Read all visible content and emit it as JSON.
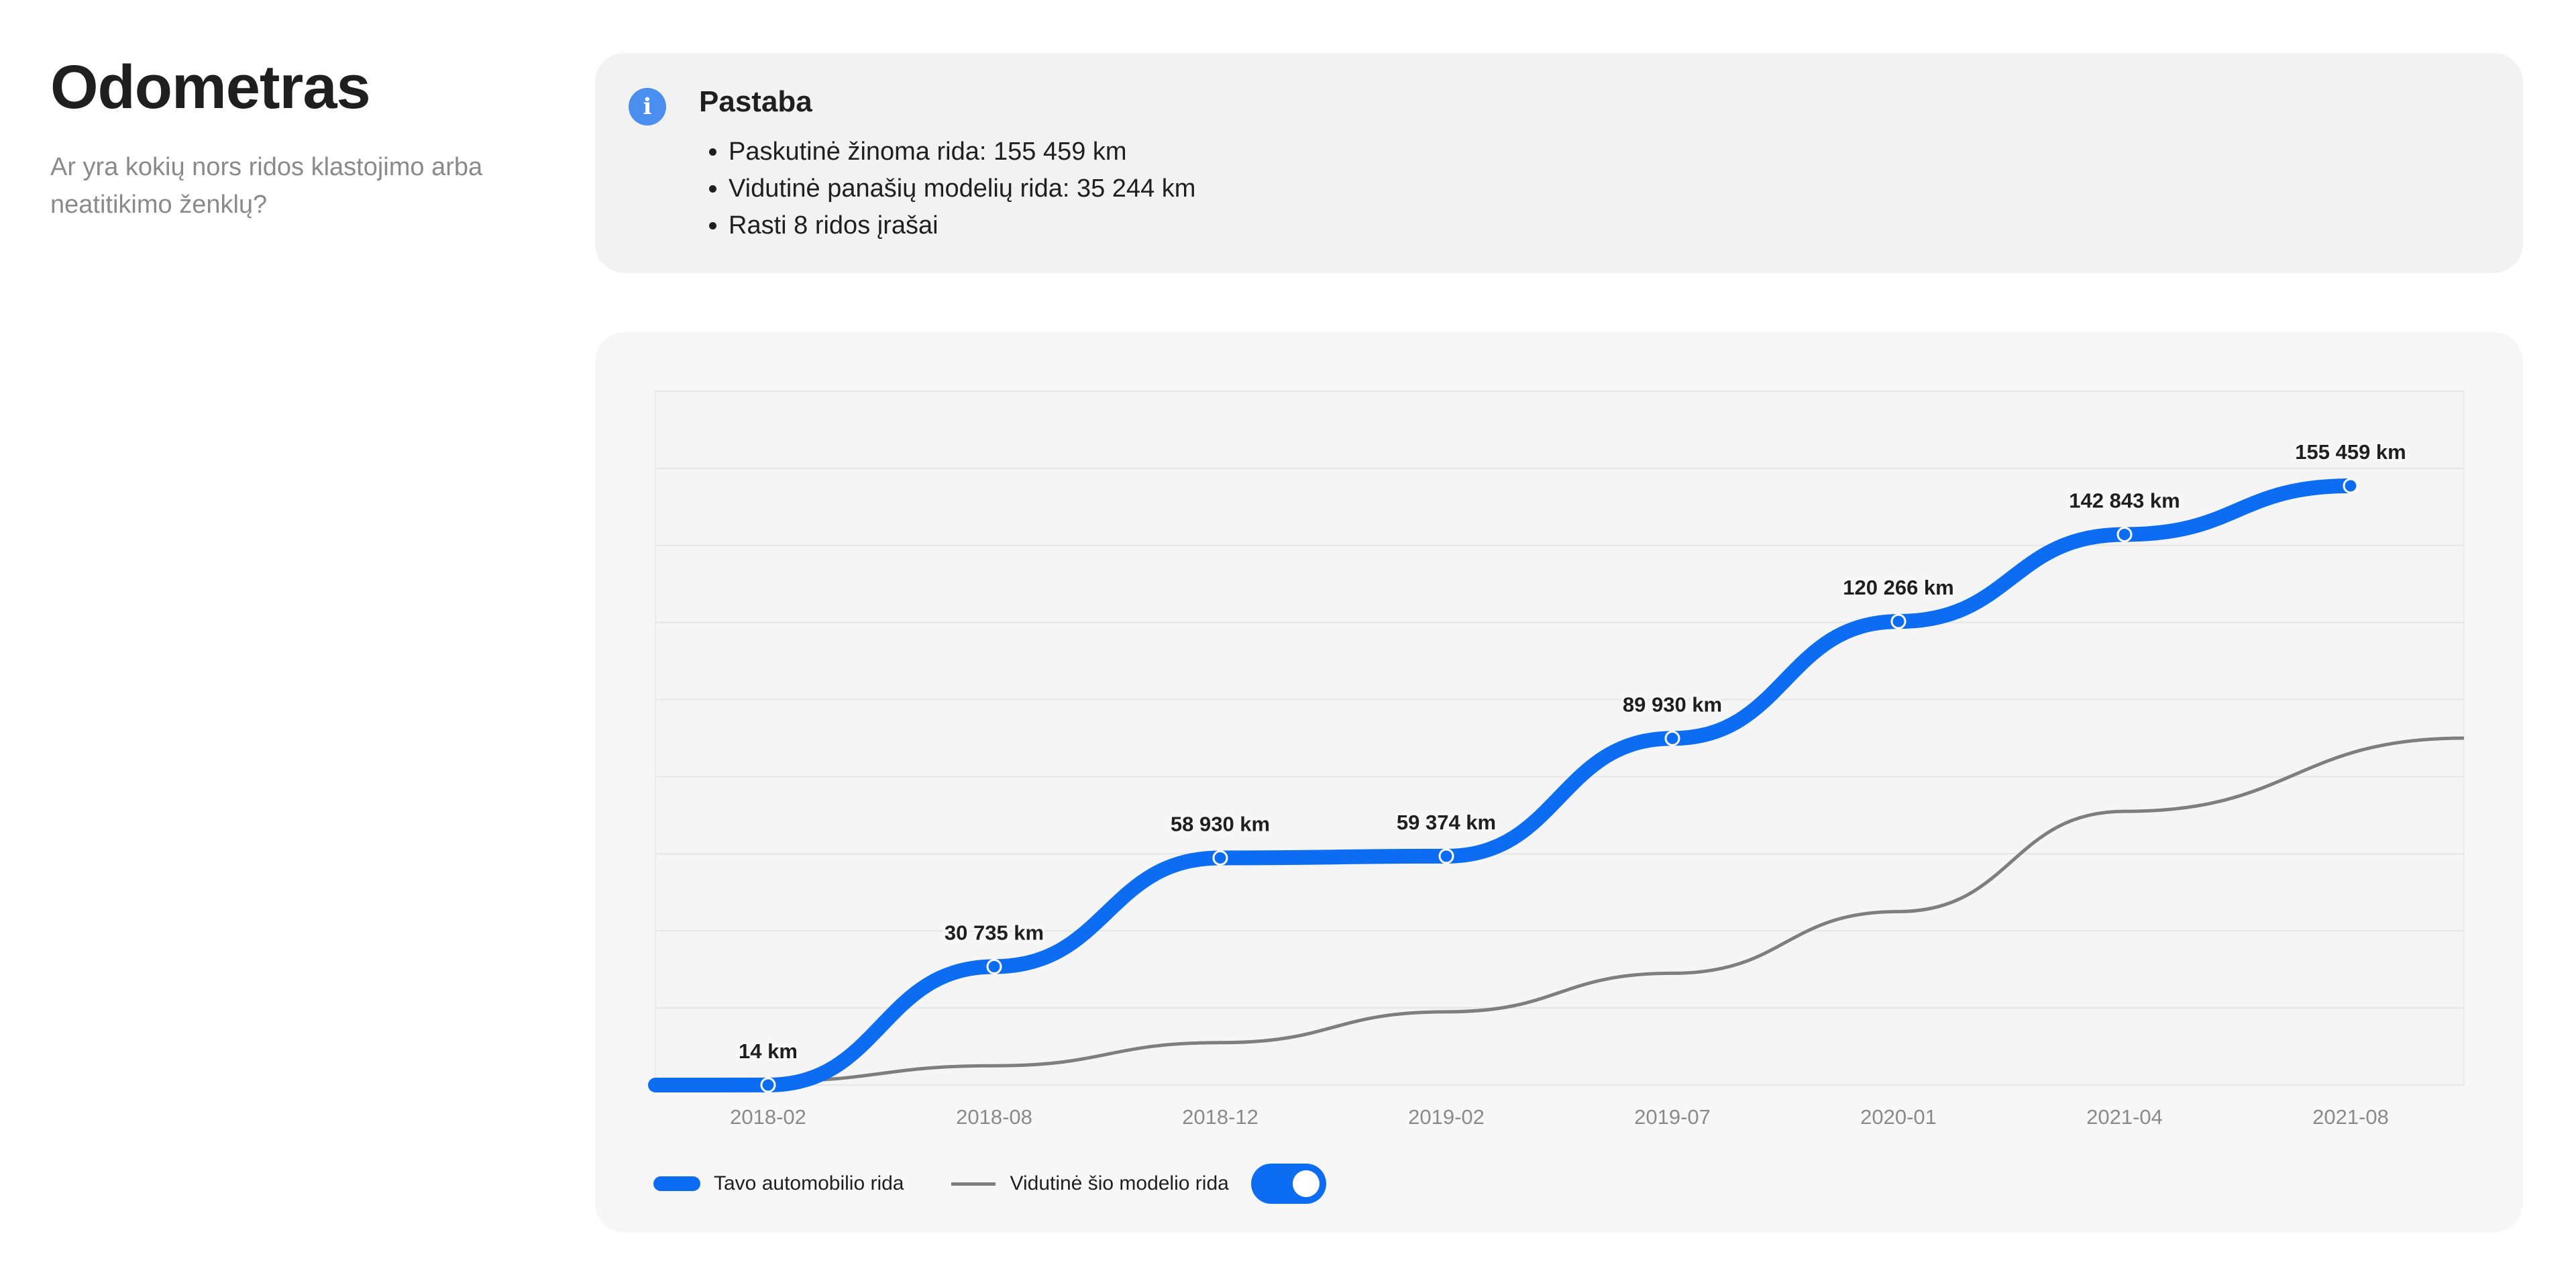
{
  "page": {
    "title": "Odometras",
    "subtitle": "Ar yra kokių nors ridos klastojimo arba neatitikimo ženklų?"
  },
  "note": {
    "icon": "info-icon",
    "icon_glyph": "i",
    "title": "Pastaba",
    "items": [
      "Paskutinė žinoma rida: 155 459 km",
      "Vidutinė panašių modelių rida: 35 244 km",
      "Rasti 8 ridos įrašai"
    ]
  },
  "legend": {
    "own_label": "Tavo automobilio rida",
    "avg_label": "Vidutinė šio modelio rida",
    "toggle_on": true
  },
  "colors": {
    "accent": "#0d6df2",
    "average_line": "#7e7e7e",
    "info": "#4a8ff0"
  },
  "chart_data": {
    "type": "line",
    "categories": [
      "2018-02",
      "2018-08",
      "2018-12",
      "2019-02",
      "2019-07",
      "2020-01",
      "2021-04",
      "2021-08"
    ],
    "ylim": [
      0,
      180000
    ],
    "grid": true,
    "legend_position": "bottom-left",
    "series": [
      {
        "name": "Tavo automobilio rida",
        "values": [
          14,
          30735,
          58930,
          59374,
          89930,
          120266,
          142843,
          155459
        ],
        "labels": [
          "14 km",
          "30 735 km",
          "58 930 km",
          "59 374 km",
          "89 930 km",
          "120 266 km",
          "142 843 km",
          "155 459 km"
        ]
      },
      {
        "name": "Vidutinė šio modelio rida",
        "values": [
          1000,
          5000,
          11000,
          19000,
          29000,
          45000,
          71000,
          84000
        ]
      }
    ]
  }
}
